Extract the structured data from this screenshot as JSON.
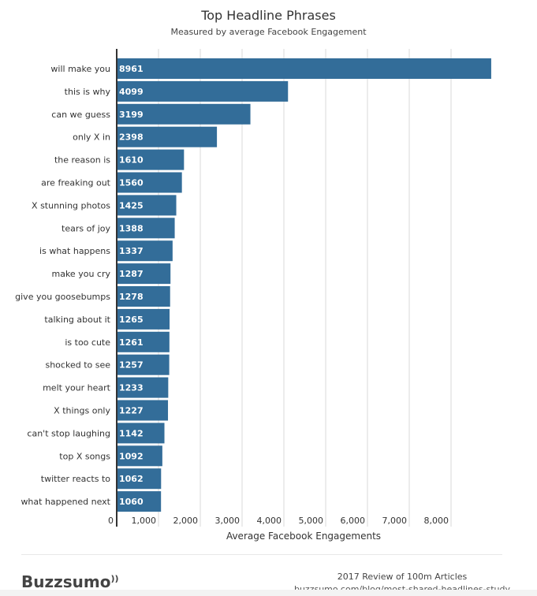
{
  "chart_data": {
    "type": "bar",
    "orientation": "horizontal",
    "title": "Top Headline Phrases",
    "subtitle": "Measured by average Facebook Engagement",
    "xlabel": "Average Facebook Engagements",
    "ylabel": "",
    "xlim": [
      0,
      9000
    ],
    "xticks": [
      "0",
      "1,000",
      "2,000",
      "3,000",
      "4,000",
      "5,000",
      "6,000",
      "7,000",
      "8,000"
    ],
    "xtick_values": [
      0,
      1000,
      2000,
      3000,
      4000,
      5000,
      6000,
      7000,
      8000
    ],
    "grid": true,
    "bar_color": "#336d99",
    "categories": [
      "will make you",
      "this is why",
      "can we guess",
      "only X in",
      "the reason is",
      "are freaking out",
      "X stunning photos",
      "tears of joy",
      "is what happens",
      "make you cry",
      "give you goosebumps",
      "talking about it",
      "is too cute",
      "shocked to see",
      "melt your heart",
      "X things only",
      "can't stop laughing",
      "top X songs",
      "twitter reacts to",
      "what happened next"
    ],
    "values": [
      8961,
      4099,
      3199,
      2398,
      1610,
      1560,
      1425,
      1388,
      1337,
      1287,
      1278,
      1265,
      1261,
      1257,
      1233,
      1227,
      1142,
      1092,
      1062,
      1060
    ]
  },
  "footer": {
    "logo": "Buzzsumo",
    "line1": "2017 Review of 100m Articles",
    "line2": "buzzsumo.com/blog/most-shared-headlines-study"
  }
}
